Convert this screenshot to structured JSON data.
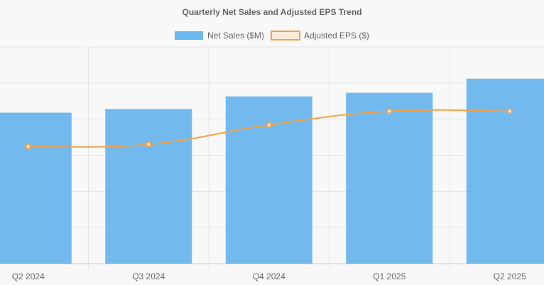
{
  "chart_data": {
    "type": "bar",
    "title": "Quarterly Net Sales and Adjusted EPS Trend",
    "categories": [
      "Q2 2024",
      "Q3 2024",
      "Q4 2024",
      "Q1 2025",
      "Q2 2025"
    ],
    "series": [
      {
        "name": "Net Sales ($M)",
        "type": "bar",
        "axis": "left",
        "color": "#5aaeeb",
        "values": [
          418,
          428,
          463,
          473,
          512
        ]
      },
      {
        "name": "Adjusted EPS ($)",
        "type": "line",
        "axis": "right",
        "color": "#f5a344",
        "values": [
          1.62,
          1.65,
          1.92,
          2.11,
          2.11
        ]
      }
    ],
    "left_axis": {
      "range": [
        0,
        600
      ]
    },
    "right_axis": {
      "range": [
        0,
        3
      ]
    },
    "grid": true,
    "legend_position": "top-center"
  }
}
